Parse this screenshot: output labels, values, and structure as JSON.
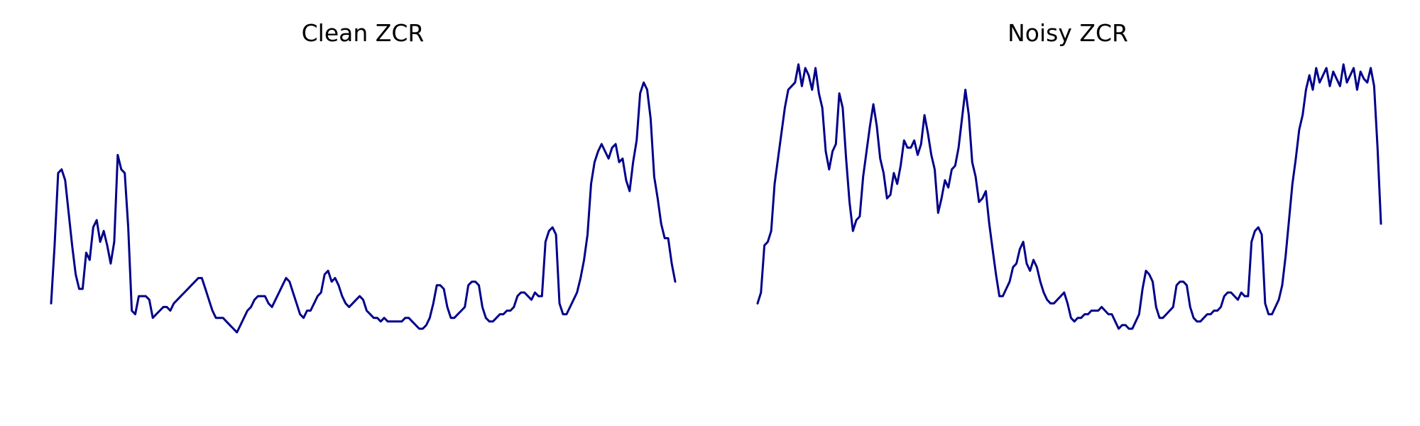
{
  "chart_data": [
    {
      "type": "line",
      "title": "Clean ZCR",
      "xlabel": "",
      "ylabel": "",
      "axes": "off",
      "grid": false,
      "line_color": "#00008b",
      "ylim": [
        0,
        1
      ],
      "values": [
        0.27,
        0.43,
        0.63,
        0.64,
        0.61,
        0.52,
        0.43,
        0.35,
        0.31,
        0.31,
        0.41,
        0.39,
        0.48,
        0.5,
        0.44,
        0.47,
        0.43,
        0.38,
        0.44,
        0.68,
        0.64,
        0.63,
        0.48,
        0.25,
        0.24,
        0.29,
        0.29,
        0.29,
        0.28,
        0.23,
        0.24,
        0.25,
        0.26,
        0.26,
        0.25,
        0.27,
        0.28,
        0.29,
        0.3,
        0.31,
        0.32,
        0.33,
        0.34,
        0.34,
        0.31,
        0.28,
        0.25,
        0.23,
        0.23,
        0.23,
        0.22,
        0.21,
        0.2,
        0.19,
        0.21,
        0.23,
        0.25,
        0.26,
        0.28,
        0.29,
        0.29,
        0.29,
        0.27,
        0.26,
        0.28,
        0.3,
        0.32,
        0.34,
        0.33,
        0.3,
        0.27,
        0.24,
        0.23,
        0.25,
        0.25,
        0.27,
        0.29,
        0.3,
        0.35,
        0.36,
        0.33,
        0.34,
        0.32,
        0.29,
        0.27,
        0.26,
        0.27,
        0.28,
        0.29,
        0.28,
        0.25,
        0.24,
        0.23,
        0.23,
        0.22,
        0.23,
        0.22,
        0.22,
        0.22,
        0.22,
        0.22,
        0.23,
        0.23,
        0.22,
        0.21,
        0.2,
        0.2,
        0.21,
        0.23,
        0.27,
        0.32,
        0.32,
        0.31,
        0.26,
        0.23,
        0.23,
        0.24,
        0.25,
        0.26,
        0.32,
        0.33,
        0.33,
        0.32,
        0.26,
        0.23,
        0.22,
        0.22,
        0.23,
        0.24,
        0.24,
        0.25,
        0.25,
        0.26,
        0.29,
        0.3,
        0.3,
        0.29,
        0.28,
        0.3,
        0.29,
        0.29,
        0.44,
        0.47,
        0.48,
        0.46,
        0.27,
        0.24,
        0.24,
        0.26,
        0.28,
        0.3,
        0.34,
        0.39,
        0.46,
        0.6,
        0.66,
        0.69,
        0.71,
        0.69,
        0.67,
        0.7,
        0.71,
        0.66,
        0.67,
        0.61,
        0.58,
        0.66,
        0.72,
        0.85,
        0.88,
        0.86,
        0.78,
        0.62,
        0.56,
        0.49,
        0.45,
        0.45,
        0.38,
        0.33
      ]
    },
    {
      "type": "line",
      "title": "Noisy ZCR",
      "xlabel": "",
      "ylabel": "",
      "axes": "off",
      "grid": false,
      "line_color": "#00008b",
      "ylim": [
        0,
        1
      ],
      "values": [
        0.27,
        0.3,
        0.43,
        0.44,
        0.47,
        0.6,
        0.67,
        0.74,
        0.81,
        0.86,
        0.87,
        0.88,
        0.93,
        0.87,
        0.92,
        0.9,
        0.86,
        0.92,
        0.85,
        0.81,
        0.69,
        0.64,
        0.69,
        0.71,
        0.85,
        0.81,
        0.67,
        0.55,
        0.47,
        0.5,
        0.51,
        0.62,
        0.69,
        0.76,
        0.82,
        0.76,
        0.67,
        0.63,
        0.56,
        0.57,
        0.63,
        0.6,
        0.65,
        0.72,
        0.7,
        0.7,
        0.72,
        0.68,
        0.71,
        0.79,
        0.74,
        0.68,
        0.64,
        0.52,
        0.56,
        0.61,
        0.59,
        0.64,
        0.65,
        0.7,
        0.78,
        0.86,
        0.79,
        0.66,
        0.62,
        0.55,
        0.56,
        0.58,
        0.49,
        0.42,
        0.35,
        0.29,
        0.29,
        0.31,
        0.33,
        0.37,
        0.38,
        0.42,
        0.44,
        0.38,
        0.36,
        0.39,
        0.37,
        0.33,
        0.3,
        0.28,
        0.27,
        0.27,
        0.28,
        0.29,
        0.3,
        0.27,
        0.23,
        0.22,
        0.23,
        0.23,
        0.24,
        0.24,
        0.25,
        0.25,
        0.25,
        0.26,
        0.25,
        0.24,
        0.24,
        0.22,
        0.2,
        0.21,
        0.21,
        0.2,
        0.2,
        0.22,
        0.24,
        0.31,
        0.36,
        0.35,
        0.33,
        0.26,
        0.23,
        0.23,
        0.24,
        0.25,
        0.26,
        0.32,
        0.33,
        0.33,
        0.32,
        0.26,
        0.23,
        0.22,
        0.22,
        0.23,
        0.24,
        0.24,
        0.25,
        0.25,
        0.26,
        0.29,
        0.3,
        0.3,
        0.29,
        0.28,
        0.3,
        0.29,
        0.29,
        0.44,
        0.47,
        0.48,
        0.46,
        0.27,
        0.24,
        0.24,
        0.26,
        0.28,
        0.32,
        0.4,
        0.5,
        0.6,
        0.67,
        0.75,
        0.79,
        0.86,
        0.9,
        0.86,
        0.92,
        0.88,
        0.9,
        0.92,
        0.87,
        0.91,
        0.89,
        0.87,
        0.93,
        0.88,
        0.9,
        0.92,
        0.86,
        0.91,
        0.89,
        0.88,
        0.92,
        0.87,
        0.7,
        0.49
      ]
    }
  ]
}
